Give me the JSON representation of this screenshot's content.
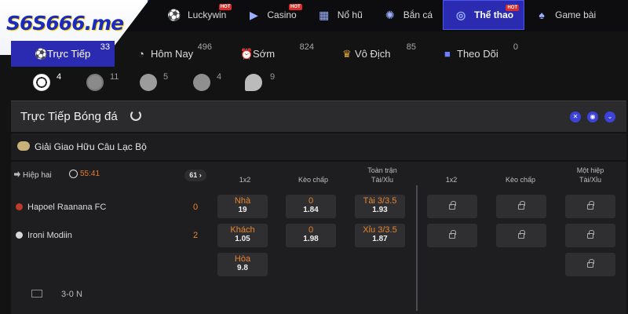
{
  "brand": {
    "logo_text": "S6S666.me"
  },
  "nav": {
    "items": [
      {
        "label": "Luckywin",
        "icon": "soccer-ball-icon",
        "hot": "HOT"
      },
      {
        "label": "Casino",
        "icon": "play-icon",
        "hot": "HOT"
      },
      {
        "label": "Nổ hũ",
        "icon": "slot-icon"
      },
      {
        "label": "Bắn cá",
        "icon": "fish-icon"
      },
      {
        "label": "Thể thao",
        "icon": "sport-ball-icon",
        "hot": "HOT",
        "active": true
      },
      {
        "label": "Game bài",
        "icon": "cards-icon"
      }
    ]
  },
  "tabs": [
    {
      "label": "Trực Tiếp",
      "count": "33",
      "icon": "live-icon"
    },
    {
      "label": "Hôm Nay",
      "count": "496",
      "icon": "compass-icon"
    },
    {
      "label": "Sớm",
      "count": "824",
      "icon": "alarm-icon"
    },
    {
      "label": "Vô Địch",
      "count": "85",
      "icon": "trophy-icon"
    },
    {
      "label": "Theo Dõi",
      "count": "0",
      "icon": "bookmark-icon"
    }
  ],
  "sports": [
    {
      "name": "soccer-icon",
      "count": "4"
    },
    {
      "name": "basketball-icon",
      "count": "11"
    },
    {
      "name": "tennis-icon",
      "count": "5"
    },
    {
      "name": "volleyball-icon",
      "count": "4"
    },
    {
      "name": "table-tennis-icon",
      "count": "9"
    }
  ],
  "section": {
    "title": "Trực Tiếp Bóng đá"
  },
  "league": {
    "name": "Giải Giao Hữu Câu Lạc Bộ"
  },
  "match": {
    "period": "Hiệp hai",
    "clock": "55:41",
    "more": "61",
    "teams": [
      {
        "name": "Hapoel Raanana FC",
        "score": "0"
      },
      {
        "name": "Ironi Modiin",
        "score": "2"
      }
    ],
    "footer": "3-0  N",
    "headers": {
      "h1": "1x2",
      "h2": "Kèo chấp",
      "h3": "Toàn trận\nTài/Xỉu",
      "h4": "1x2",
      "h5": "Kèo chấp",
      "h6": "Một hiệp\nTài/Xỉu"
    },
    "odds": {
      "x12": [
        {
          "label": "Nhà",
          "value": "19"
        },
        {
          "label": "Khách",
          "value": "1.05"
        },
        {
          "label": "Hòa",
          "value": "9.8"
        }
      ],
      "handicap": [
        {
          "label": "0",
          "value": "1.84"
        },
        {
          "label": "0",
          "value": "1.98"
        }
      ],
      "overunder": [
        {
          "label": "Tài 3/3.5",
          "value": "1.93"
        },
        {
          "label": "Xỉu 3/3.5",
          "value": "1.87"
        }
      ]
    }
  },
  "colors": {
    "accent": "#2a2bb0",
    "odd_label": "#e8852e",
    "background": "#131313"
  }
}
